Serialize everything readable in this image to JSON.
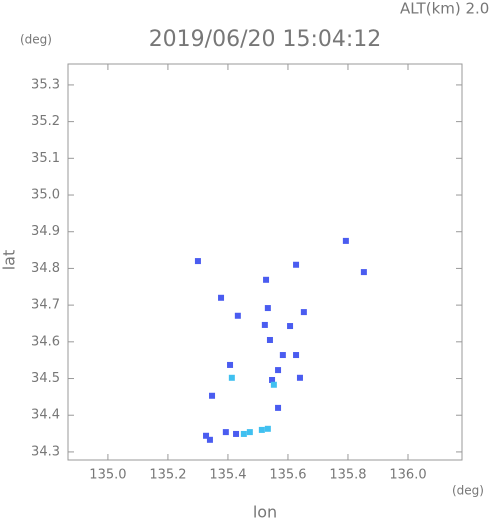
{
  "chart_data": {
    "type": "scatter",
    "title": "2019/06/20 15:04:12",
    "subtitle": "ALT(km) 2.0",
    "y_unit": "(deg)",
    "x_unit": "(deg)",
    "x_label": "lon",
    "y_label": "lat",
    "xlim": [
      134.867,
      136.18
    ],
    "ylim": [
      34.278,
      35.357
    ],
    "xticks": [
      {
        "value": 135.0,
        "label": "135.0"
      },
      135.2,
      135.4,
      135.6,
      135.8,
      {
        "value": 136.0,
        "label": "136.0"
      }
    ],
    "yticks": [
      34.3,
      34.4,
      34.5,
      34.6,
      34.7,
      34.8,
      34.9,
      {
        "value": 35.0,
        "label": "35.0"
      },
      35.1,
      35.2,
      35.3
    ],
    "series": [
      {
        "color": "#4a5cf0",
        "x": [
          135.793,
          135.853,
          135.627,
          135.527,
          135.3,
          135.377,
          135.433,
          135.533,
          135.653,
          135.607,
          135.523,
          135.54,
          135.583,
          135.627,
          135.567,
          135.547,
          135.64,
          135.407,
          135.347,
          135.567,
          135.34,
          135.327,
          135.393,
          135.427
        ],
        "values": [
          34.875,
          34.79,
          34.81,
          34.769,
          34.82,
          34.72,
          34.671,
          34.692,
          34.681,
          34.643,
          34.646,
          34.605,
          34.564,
          34.564,
          34.523,
          34.496,
          34.502,
          34.537,
          34.453,
          34.42,
          34.333,
          34.344,
          34.354,
          34.349
        ]
      },
      {
        "color": "#40c0f0",
        "x": [
          135.473,
          135.513,
          135.413,
          135.553,
          135.453,
          135.533
        ],
        "values": [
          34.354,
          34.36,
          34.502,
          34.483,
          34.349,
          34.363
        ]
      }
    ]
  }
}
